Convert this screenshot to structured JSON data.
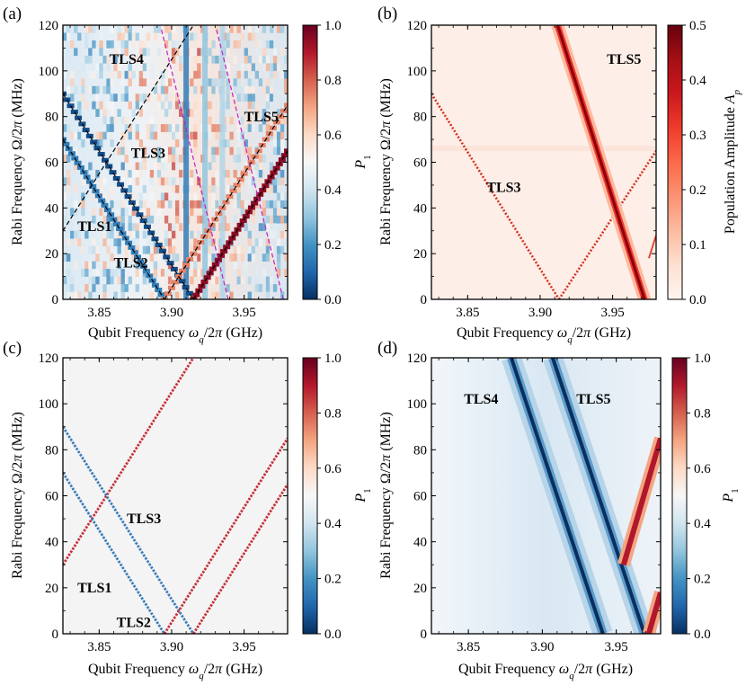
{
  "chart_data": [
    {
      "type": "heatmap",
      "panel_label": "(a)",
      "xlabel_parts": [
        "Qubit Frequency ",
        "ω",
        "q",
        "/2",
        "π",
        " (GHz)"
      ],
      "ylabel_parts": [
        "Rabi Frequency ",
        "Ω/2",
        "π",
        " (MHz)"
      ],
      "xlim": [
        3.825,
        3.98
      ],
      "ylim": [
        0,
        120
      ],
      "xticks": [
        3.85,
        3.9,
        3.95
      ],
      "xtick_labels": [
        "3.85",
        "3.90",
        "3.95"
      ],
      "yticks": [
        0,
        20,
        40,
        60,
        80,
        100,
        120
      ],
      "ytick_labels": [
        "0",
        "20",
        "40",
        "60",
        "80",
        "100",
        "120"
      ],
      "colorbar": {
        "label": "P1",
        "label_parts": [
          "P",
          "1"
        ],
        "range": [
          0,
          1
        ],
        "ticks": [
          0,
          0.2,
          0.4,
          0.6,
          0.8,
          1.0
        ],
        "tick_labels": [
          "0.0",
          "0.2",
          "0.4",
          "0.6",
          "0.8",
          "1.0"
        ],
        "colormap": "RdBu_r"
      },
      "annotations": [
        {
          "text": "TLS4",
          "x": 3.857,
          "y": 103
        },
        {
          "text": "TLS5",
          "x": 3.95,
          "y": 78
        },
        {
          "text": "TLS3",
          "x": 3.872,
          "y": 62
        },
        {
          "text": "TLS1",
          "x": 3.835,
          "y": 30
        },
        {
          "text": "TLS2",
          "x": 3.86,
          "y": 14
        }
      ],
      "guide_lines": [
        {
          "name": "TLS1",
          "style": "black-dashed",
          "points": [
            [
              3.825,
              30
            ],
            [
              3.915,
              120
            ]
          ]
        },
        {
          "name": "TLS1",
          "style": "black-dashed",
          "points": [
            [
              3.825,
              70
            ],
            [
              3.895,
              0
            ]
          ]
        },
        {
          "name": "TLS2",
          "style": "black-dashed",
          "points": [
            [
              3.825,
              90
            ],
            [
              3.915,
              0
            ]
          ]
        },
        {
          "name": "TLS2",
          "style": "black-dashed",
          "points": [
            [
              3.915,
              0
            ],
            [
              3.98,
              65
            ]
          ]
        },
        {
          "name": "TLS3",
          "style": "black-dashed",
          "points": [
            [
              3.895,
              0
            ],
            [
              3.98,
              85
            ]
          ]
        },
        {
          "name": "TLS4",
          "style": "magenta-dashed",
          "points": [
            [
              3.893,
              118
            ],
            [
              3.939,
              0
            ]
          ]
        },
        {
          "name": "TLS5",
          "style": "magenta-dashed",
          "points": [
            [
              3.931,
              118
            ],
            [
              3.977,
              0
            ]
          ]
        }
      ],
      "bright_features": [
        {
          "note": "positive-slope red resonance",
          "from": [
            3.915,
            0
          ],
          "to": [
            3.98,
            65
          ],
          "value": 0.95
        },
        {
          "note": "positive-slope red resonance",
          "from": [
            3.895,
            0
          ],
          "to": [
            3.98,
            85
          ],
          "value": 0.75
        }
      ],
      "dark_features": [
        {
          "note": "negative-slope blue resonance",
          "from": [
            3.825,
            90
          ],
          "to": [
            3.915,
            0
          ],
          "value": 0.05
        },
        {
          "note": "negative-slope blue resonance",
          "from": [
            3.825,
            70
          ],
          "to": [
            3.895,
            0
          ],
          "value": 0.15
        },
        {
          "note": "vertical blue band",
          "x": 3.91,
          "value": 0.15
        },
        {
          "note": "vertical blue band",
          "x": 3.923,
          "value": 0.3
        },
        {
          "note": "vertical blue band",
          "x": 3.935,
          "value": 0.35
        }
      ]
    },
    {
      "type": "heatmap",
      "panel_label": "(b)",
      "xlabel_parts": [
        "Qubit Frequency ",
        "ω",
        "q",
        "/2",
        "π",
        " (GHz)"
      ],
      "ylabel_parts": [
        "Rabi Frequency ",
        "Ω/2",
        "π",
        " (MHz)"
      ],
      "xlim": [
        3.825,
        3.98
      ],
      "ylim": [
        0,
        120
      ],
      "xticks": [
        3.85,
        3.9,
        3.95
      ],
      "xtick_labels": [
        "3.85",
        "3.90",
        "3.95"
      ],
      "yticks": [
        0,
        20,
        40,
        60,
        80,
        100,
        120
      ],
      "ytick_labels": [
        "0",
        "20",
        "40",
        "60",
        "80",
        "100",
        "120"
      ],
      "colorbar": {
        "label": "Population Amplitude Ap",
        "label_parts": [
          "Population Amplitude ",
          "A",
          "p"
        ],
        "range": [
          0,
          0.5
        ],
        "ticks": [
          0,
          0.1,
          0.2,
          0.3,
          0.4,
          0.5
        ],
        "tick_labels": [
          "0.0",
          "0.1",
          "0.2",
          "0.3",
          "0.4",
          "0.5"
        ],
        "colormap": "Reds"
      },
      "annotations": [
        {
          "text": "TLS5",
          "x": 3.946,
          "y": 103
        },
        {
          "text": "TLS3",
          "x": 3.863,
          "y": 47
        }
      ],
      "lines": [
        {
          "name": "TLS3",
          "style": "red-dotted",
          "points": [
            [
              3.825,
              90
            ],
            [
              3.913,
              0
            ]
          ]
        },
        {
          "name": "TLS3",
          "style": "red-dotted",
          "points": [
            [
              3.913,
              0
            ],
            [
              3.98,
              65
            ]
          ]
        },
        {
          "name": "TLS5",
          "style": "dark-red-band",
          "points": [
            [
              3.912,
              120
            ],
            [
              3.972,
              0
            ]
          ]
        },
        {
          "name": "TLS5",
          "style": "red-thin",
          "points": [
            [
              3.975,
              18
            ],
            [
              3.98,
              28
            ]
          ]
        }
      ]
    },
    {
      "type": "heatmap",
      "panel_label": "(c)",
      "xlabel_parts": [
        "Qubit Frequency ",
        "ω",
        "q",
        "/2",
        "π",
        " (GHz)"
      ],
      "ylabel_parts": [
        "Rabi Frequency ",
        "Ω/2",
        "π",
        " (MHz)"
      ],
      "xlim": [
        3.825,
        3.98
      ],
      "ylim": [
        0,
        120
      ],
      "xticks": [
        3.85,
        3.9,
        3.95
      ],
      "xtick_labels": [
        "3.85",
        "3.90",
        "3.95"
      ],
      "yticks": [
        0,
        20,
        40,
        60,
        80,
        100,
        120
      ],
      "ytick_labels": [
        "0",
        "20",
        "40",
        "60",
        "80",
        "100",
        "120"
      ],
      "colorbar": {
        "label": "P1",
        "label_parts": [
          "P",
          "1"
        ],
        "range": [
          0,
          1
        ],
        "ticks": [
          0,
          0.2,
          0.4,
          0.6,
          0.8,
          1.0
        ],
        "tick_labels": [
          "0.0",
          "0.2",
          "0.4",
          "0.6",
          "0.8",
          "1.0"
        ],
        "colormap": "RdBu_r"
      },
      "annotations": [
        {
          "text": "TLS3",
          "x": 3.869,
          "y": 48
        },
        {
          "text": "TLS1",
          "x": 3.835,
          "y": 18
        },
        {
          "text": "TLS2",
          "x": 3.862,
          "y": 3
        }
      ],
      "lines": [
        {
          "name": "TLS1",
          "color": "red",
          "points": [
            [
              3.825,
              30
            ],
            [
              3.915,
              120
            ]
          ]
        },
        {
          "name": "TLS1",
          "color": "blue",
          "points": [
            [
              3.825,
              70
            ],
            [
              3.895,
              0
            ]
          ]
        },
        {
          "name": "TLS2",
          "color": "blue",
          "points": [
            [
              3.825,
              90
            ],
            [
              3.915,
              0
            ]
          ]
        },
        {
          "name": "TLS2",
          "color": "red",
          "points": [
            [
              3.915,
              0
            ],
            [
              3.98,
              65
            ]
          ]
        },
        {
          "name": "TLS3",
          "color": "red",
          "points": [
            [
              3.895,
              0
            ],
            [
              3.98,
              85
            ]
          ]
        }
      ]
    },
    {
      "type": "heatmap",
      "panel_label": "(d)",
      "xlabel_parts": [
        "Qubit Frequency ",
        "ω",
        "q",
        "/2",
        "π",
        " (GHz)"
      ],
      "ylabel_parts": [
        "Rabi Frequency ",
        "Ω/2",
        "π",
        " (MHz)"
      ],
      "xlim": [
        3.825,
        3.98
      ],
      "ylim": [
        0,
        120
      ],
      "xticks": [
        3.85,
        3.9,
        3.95
      ],
      "xtick_labels": [
        "3.85",
        "3.90",
        "3.95"
      ],
      "yticks": [
        0,
        20,
        40,
        60,
        80,
        100,
        120
      ],
      "ytick_labels": [
        "0",
        "20",
        "40",
        "60",
        "80",
        "100",
        "120"
      ],
      "colorbar": {
        "label": "P1",
        "label_parts": [
          "P",
          "1"
        ],
        "range": [
          0,
          1
        ],
        "ticks": [
          0,
          0.2,
          0.4,
          0.6,
          0.8,
          1.0
        ],
        "tick_labels": [
          "0.0",
          "0.2",
          "0.4",
          "0.6",
          "0.8",
          "1.0"
        ],
        "colormap": "RdBu_r"
      },
      "annotations": [
        {
          "text": "TLS4",
          "x": 3.847,
          "y": 100
        },
        {
          "text": "TLS5",
          "x": 3.923,
          "y": 100
        }
      ],
      "lines": [
        {
          "name": "TLS4",
          "style": "dark-blue-band",
          "points": [
            [
              3.879,
              120
            ],
            [
              3.941,
              0
            ]
          ]
        },
        {
          "name": "TLS5",
          "style": "dark-blue-band",
          "points": [
            [
              3.907,
              120
            ],
            [
              3.969,
              0
            ]
          ]
        },
        {
          "name": "TLS5",
          "style": "red-band",
          "points": [
            [
              3.955,
              30
            ],
            [
              3.98,
              85
            ]
          ]
        },
        {
          "name": "TLS5",
          "style": "red-band",
          "points": [
            [
              3.972,
              0
            ],
            [
              3.98,
              18
            ]
          ]
        }
      ]
    }
  ]
}
